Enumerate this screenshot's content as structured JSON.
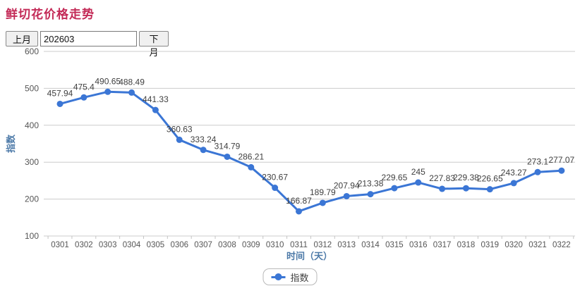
{
  "page": {
    "title": "鲜切花价格走势"
  },
  "controls": {
    "prev_month_label": "上月",
    "month_value": "202603",
    "next_month_label": "下月"
  },
  "legend": {
    "label": "指数"
  },
  "chart_data": {
    "type": "line",
    "title": "鲜切花价格走势",
    "xlabel": "时间（天）",
    "ylabel": "指数",
    "x": [
      "0301",
      "0302",
      "0303",
      "0304",
      "0305",
      "0306",
      "0307",
      "0308",
      "0309",
      "0310",
      "0311",
      "0312",
      "0313",
      "0314",
      "0315",
      "0316",
      "0317",
      "0318",
      "0319",
      "0320",
      "0321",
      "0322"
    ],
    "series": [
      {
        "name": "指数",
        "values": [
          457.94,
          475.4,
          490.65,
          488.49,
          441.33,
          360.63,
          333.24,
          314.79,
          286.21,
          230.67,
          166.87,
          189.79,
          207.94,
          213.38,
          229.65,
          245,
          227.83,
          229.38,
          226.65,
          243.27,
          273.1,
          277.07
        ]
      }
    ],
    "ylim": [
      100,
      600
    ],
    "yticks": [
      100,
      200,
      300,
      400,
      500,
      600
    ],
    "grid": true,
    "legend_position": "bottom",
    "colors": {
      "line": "#3b76d5",
      "point": "#3b76d5",
      "data_label": "#3f3f3f",
      "tick_label": "#555555",
      "grid": "#cccccc",
      "axis_title": "#4d7aa8",
      "title": "#c32a57"
    }
  }
}
